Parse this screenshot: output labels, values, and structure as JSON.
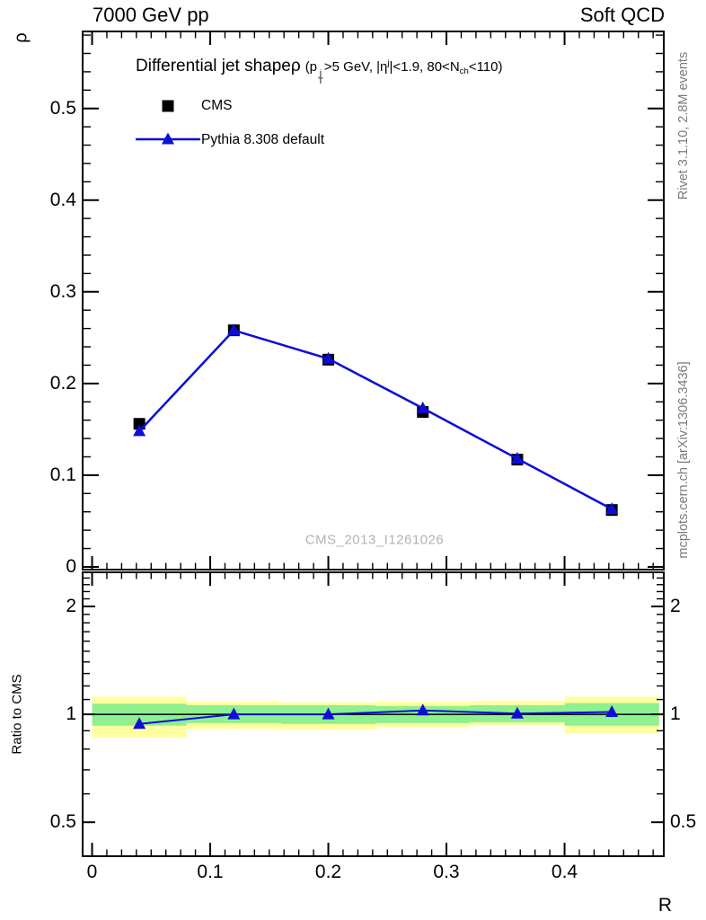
{
  "header": {
    "left": "7000 GeV pp",
    "right": "Soft QCD"
  },
  "side_notes": {
    "top_right": "Rivet 3.1.10,  2.8M events",
    "bottom_right": "mcplots.cern.ch [arXiv:1306.3436]"
  },
  "watermark": "CMS_2013_I1261026",
  "axis_titles": {
    "y_main": "ρ",
    "y_ratio": "Ratio to CMS",
    "x": "R"
  },
  "plot_title": {
    "main": "Differential jet shapeρ",
    "condition_segments": [
      {
        "t": "(p"
      },
      {
        "stack": {
          "top": "j",
          "bot": "T"
        }
      },
      {
        "t": ">5 GeV, |"
      },
      {
        "t": "η"
      },
      {
        "sup": "j"
      },
      {
        "t": "|<1.9, 80<"
      },
      {
        "t": "N"
      },
      {
        "sub": "ch"
      },
      {
        "t": "<110)"
      }
    ]
  },
  "legend": [
    {
      "label": "CMS",
      "marker": "square",
      "color": "#000000",
      "line": false
    },
    {
      "label": "Pythia 8.308 default",
      "marker": "triangle",
      "color": "#0d0dd6",
      "line": true
    }
  ],
  "chart_data": {
    "type": "line",
    "title": "Differential jet shapeρ (p_T^j>5 GeV, |η^j|<1.9, 80<N_ch<110)",
    "xlabel": "R",
    "ylabel_main": "ρ",
    "ylabel_ratio": "Ratio to CMS",
    "x": [
      0.04,
      0.12,
      0.2,
      0.28,
      0.36,
      0.44
    ],
    "bin_edges": [
      0.0,
      0.08,
      0.16,
      0.24,
      0.32,
      0.4,
      0.48
    ],
    "series": [
      {
        "name": "CMS",
        "marker": "square",
        "color": "#000000",
        "line": false,
        "values": [
          0.156,
          0.258,
          0.226,
          0.169,
          0.117,
          0.062
        ]
      },
      {
        "name": "Pythia 8.308 default",
        "marker": "triangle",
        "color": "#0d0dd6",
        "line": true,
        "values": [
          0.148,
          0.258,
          0.227,
          0.173,
          0.118,
          0.063
        ],
        "ratio_to_cms": [
          0.94,
          1.0,
          1.0,
          1.025,
          1.005,
          1.015
        ]
      }
    ],
    "ratio_reference": 1.0,
    "ratio_bands": {
      "yellow": {
        "color": "#ffffa0",
        "ranges": [
          [
            0.86,
            1.12
          ],
          [
            0.91,
            1.085
          ],
          [
            0.905,
            1.08
          ],
          [
            0.92,
            1.085
          ],
          [
            0.93,
            1.09
          ],
          [
            0.885,
            1.12
          ]
        ]
      },
      "green": {
        "color": "#8ef08e",
        "ranges": [
          [
            0.93,
            1.07
          ],
          [
            0.945,
            1.06
          ],
          [
            0.94,
            1.06
          ],
          [
            0.945,
            1.055
          ],
          [
            0.95,
            1.06
          ],
          [
            0.93,
            1.075
          ]
        ]
      }
    },
    "axes": {
      "x": {
        "min": -0.008,
        "max": 0.484,
        "majors": [
          0,
          0.1,
          0.2,
          0.3,
          0.4
        ],
        "labels": [
          "0",
          "0.1",
          "0.2",
          "0.3",
          "0.4"
        ],
        "minor_step": 0.0125,
        "grid": false
      },
      "y_main": {
        "min": -0.003,
        "max": 0.584,
        "majors": [
          0,
          0.1,
          0.2,
          0.3,
          0.4,
          0.5
        ],
        "labels": [
          "0",
          "0.1",
          "0.2",
          "0.3",
          "0.4",
          "0.5"
        ],
        "minor_step": 0.02,
        "grid": false
      },
      "y_ratio": {
        "scale": "log",
        "min": 0.402,
        "max": 2.49,
        "majors": [
          0.5,
          1,
          2
        ],
        "labels": [
          "0.5",
          "1",
          "2"
        ],
        "grid": false
      }
    },
    "legend_position": "top-left"
  }
}
